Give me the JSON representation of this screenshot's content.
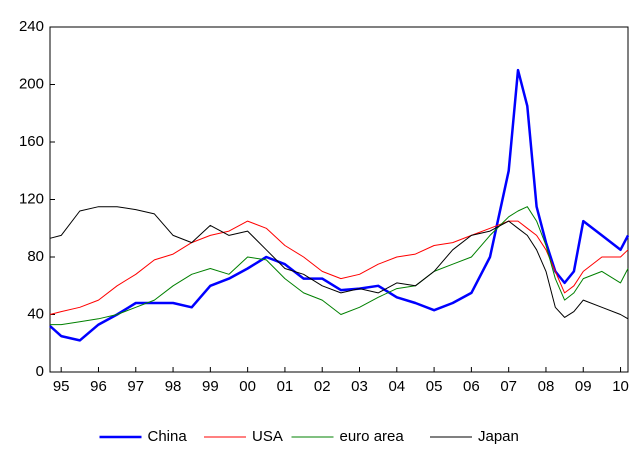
{
  "chart_data": {
    "type": "line",
    "x": [
      1994.7,
      1995,
      1995.5,
      1996,
      1996.5,
      1997,
      1997.5,
      1998,
      1998.5,
      1999,
      1999.5,
      2000,
      2000.5,
      2001,
      2001.5,
      2002,
      2002.5,
      2003,
      2003.5,
      2004,
      2004.5,
      2005,
      2005.5,
      2006,
      2006.5,
      2007,
      2007.25,
      2007.5,
      2007.75,
      2008,
      2008.25,
      2008.5,
      2008.75,
      2009,
      2009.5,
      2010,
      2010.2
    ],
    "series": [
      {
        "name": "China",
        "color": "#0000ff",
        "width": 2.5,
        "values": [
          32,
          25,
          22,
          33,
          40,
          48,
          48,
          48,
          45,
          60,
          65,
          72,
          80,
          75,
          65,
          65,
          57,
          58,
          60,
          52,
          48,
          43,
          48,
          55,
          80,
          140,
          210,
          185,
          115,
          90,
          70,
          62,
          70,
          105,
          95,
          85,
          95
        ]
      },
      {
        "name": "USA",
        "color": "#ff0000",
        "width": 1,
        "values": [
          40,
          42,
          45,
          50,
          60,
          68,
          78,
          82,
          90,
          95,
          98,
          105,
          100,
          88,
          80,
          70,
          65,
          68,
          75,
          80,
          82,
          88,
          90,
          95,
          100,
          105,
          105,
          100,
          95,
          85,
          70,
          55,
          60,
          70,
          80,
          80,
          85
        ]
      },
      {
        "name": "euro area",
        "color": "#008000",
        "width": 1,
        "values": [
          33,
          33,
          35,
          37,
          40,
          45,
          50,
          60,
          68,
          72,
          68,
          80,
          78,
          65,
          55,
          50,
          40,
          45,
          52,
          58,
          60,
          70,
          75,
          80,
          95,
          108,
          112,
          115,
          105,
          88,
          65,
          50,
          55,
          65,
          70,
          62,
          72
        ]
      },
      {
        "name": "Japan",
        "color": "#000000",
        "width": 1,
        "values": [
          93,
          95,
          112,
          115,
          115,
          113,
          110,
          95,
          90,
          102,
          95,
          98,
          85,
          72,
          68,
          60,
          55,
          58,
          55,
          62,
          60,
          70,
          85,
          95,
          98,
          105,
          100,
          95,
          85,
          70,
          45,
          38,
          42,
          50,
          45,
          40,
          37
        ]
      }
    ],
    "xlim": [
      1994.7,
      2010.2
    ],
    "xticks": [
      {
        "value": 1995,
        "label": "95"
      },
      {
        "value": 1996,
        "label": "96"
      },
      {
        "value": 1997,
        "label": "97"
      },
      {
        "value": 1998,
        "label": "98"
      },
      {
        "value": 1999,
        "label": "99"
      },
      {
        "value": 2000,
        "label": "00"
      },
      {
        "value": 2001,
        "label": "01"
      },
      {
        "value": 2002,
        "label": "02"
      },
      {
        "value": 2003,
        "label": "03"
      },
      {
        "value": 2004,
        "label": "04"
      },
      {
        "value": 2005,
        "label": "05"
      },
      {
        "value": 2006,
        "label": "06"
      },
      {
        "value": 2007,
        "label": "07"
      },
      {
        "value": 2008,
        "label": "08"
      },
      {
        "value": 2009,
        "label": "09"
      },
      {
        "value": 2010,
        "label": "10"
      }
    ],
    "ylim": [
      0,
      240
    ],
    "yticks": [
      0,
      40,
      80,
      120,
      160,
      200,
      240
    ],
    "grid": false
  }
}
